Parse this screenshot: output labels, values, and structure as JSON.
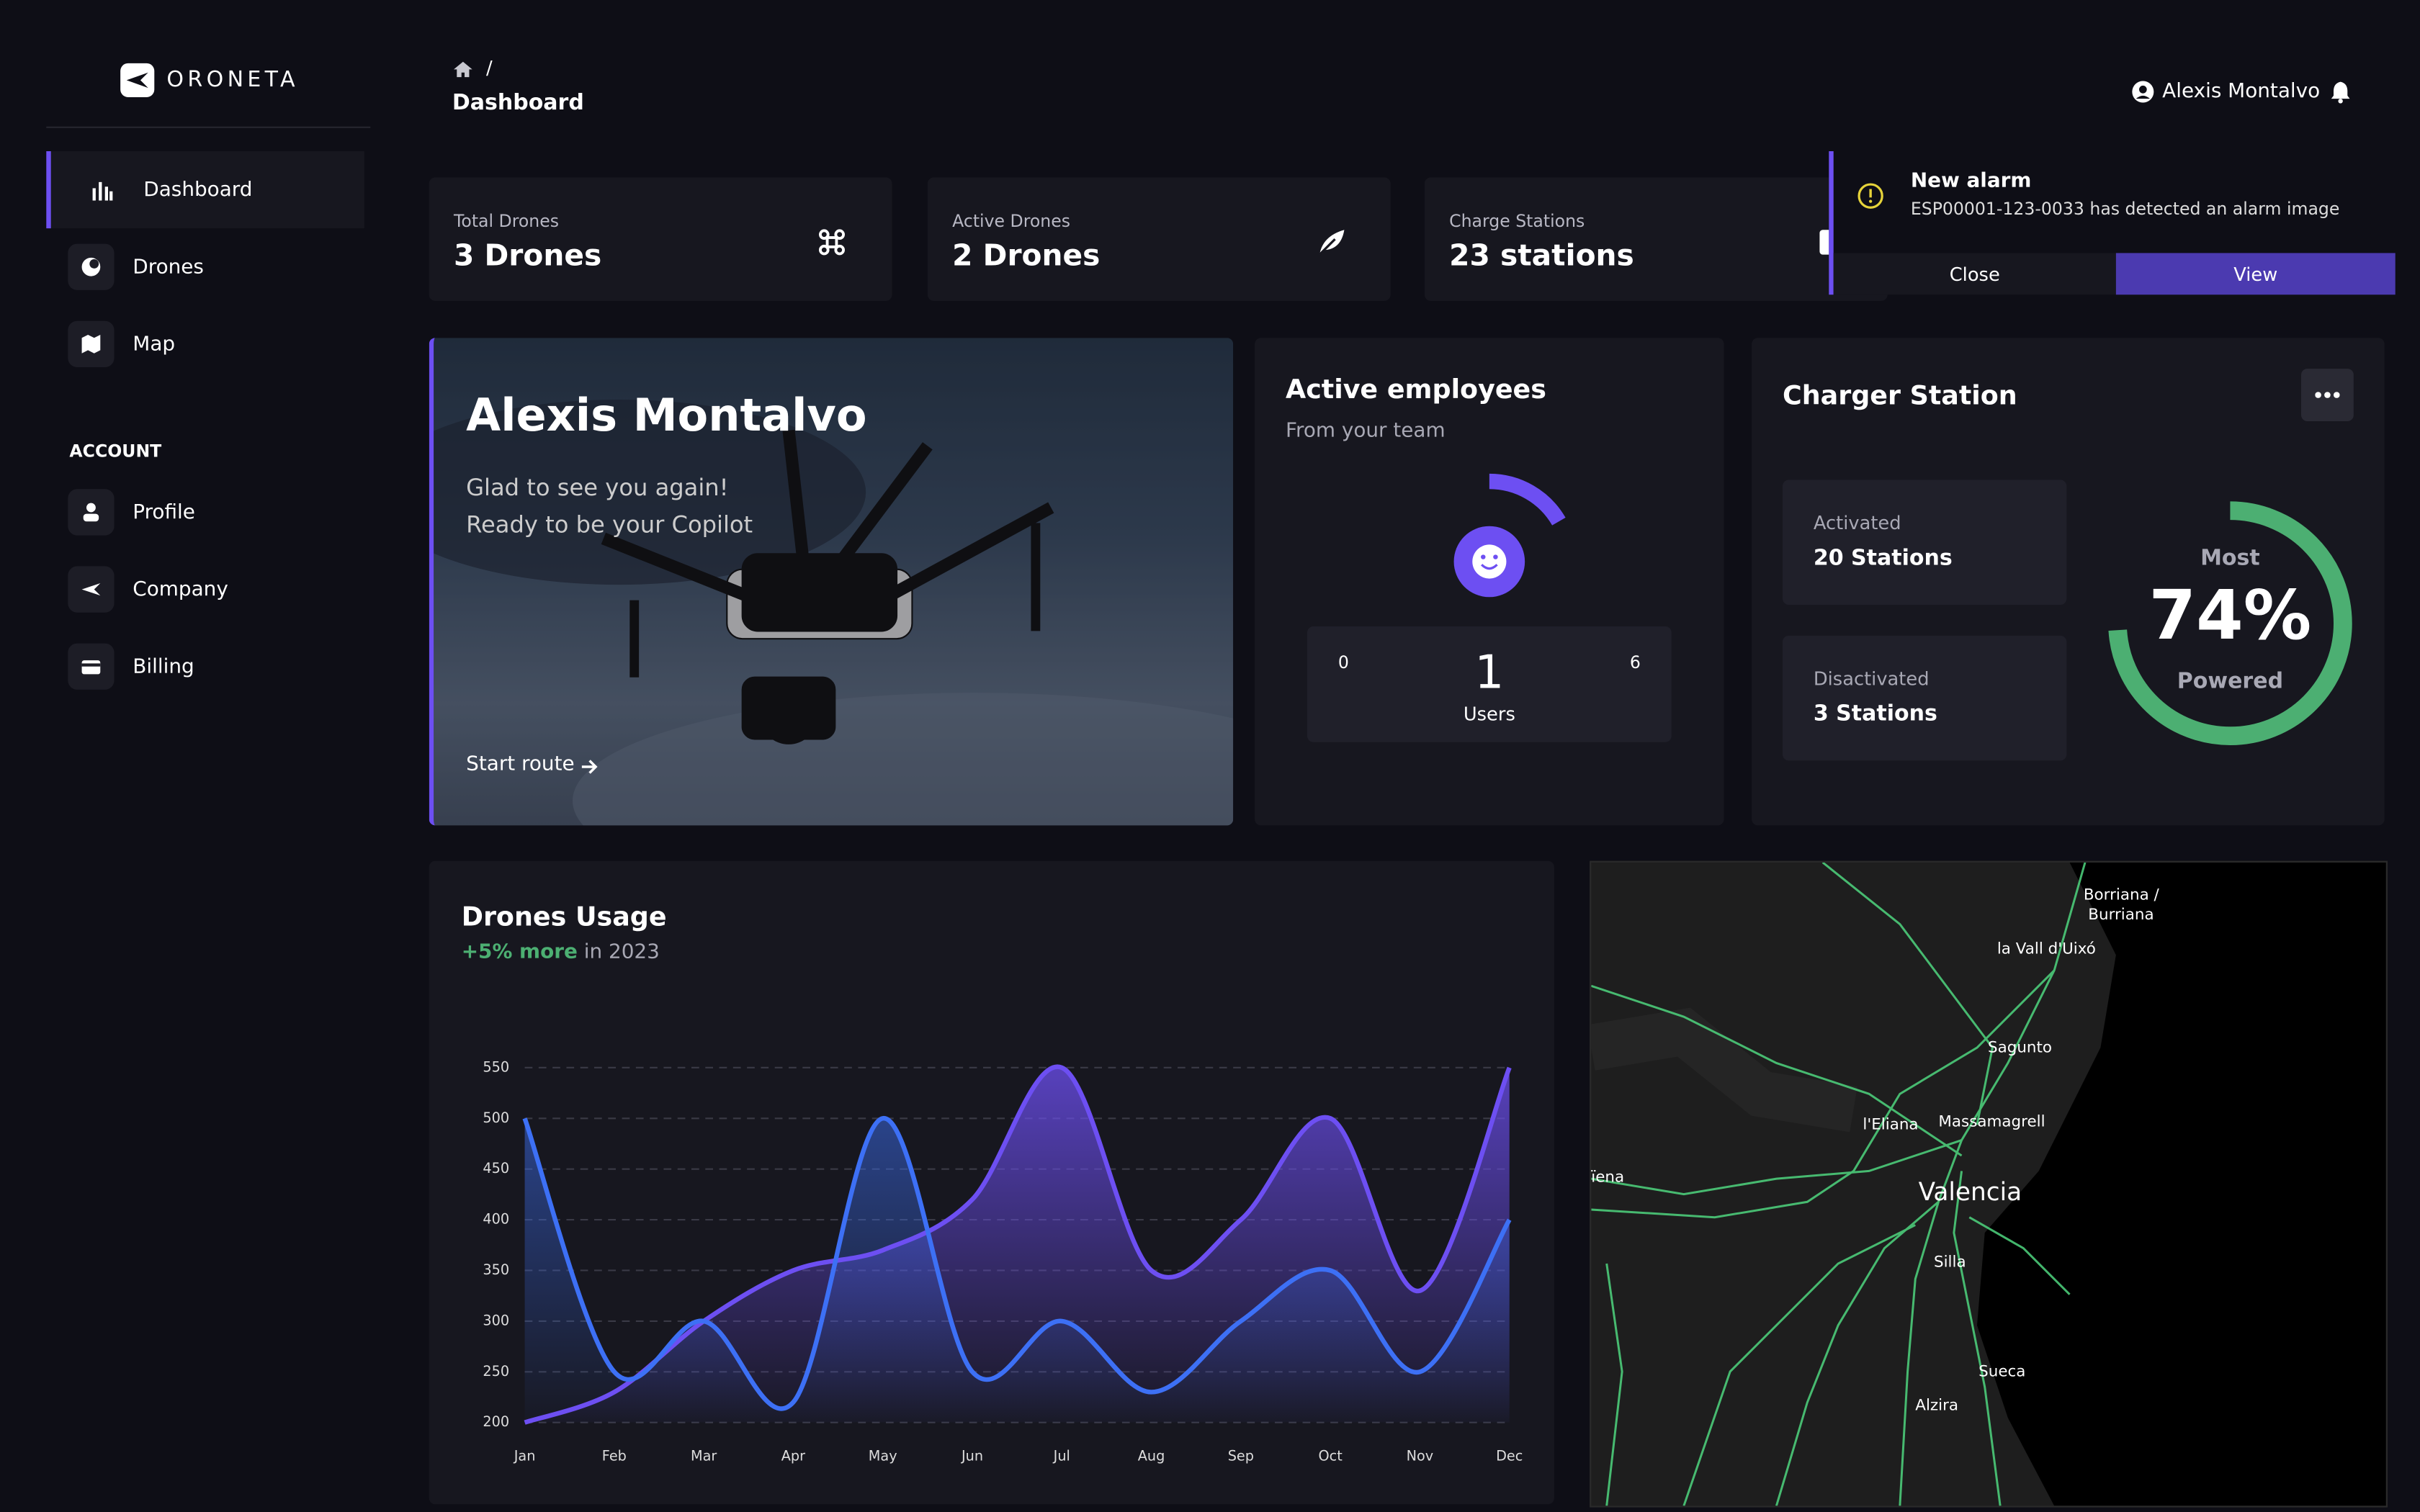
{
  "brand": "ORONETA",
  "sidebar": {
    "nav": [
      "Dashboard",
      "Drones",
      "Map"
    ],
    "account_heading": "ACCOUNT",
    "account": [
      "Profile",
      "Company",
      "Billing"
    ]
  },
  "header": {
    "breadcrumb": "/",
    "title": "Dashboard",
    "user": "Alexis Montalvo"
  },
  "stats": [
    {
      "label": "Total Drones",
      "value": "3 Drones"
    },
    {
      "label": "Active Drones",
      "value": "2 Drones"
    },
    {
      "label": "Charge Stations",
      "value": "23 stations"
    }
  ],
  "alert": {
    "title": "New alarm",
    "message": "ESP00001-123-0033 has detected an alarm image",
    "close": "Close",
    "view": "View"
  },
  "welcome": {
    "name": "Alexis Montalvo",
    "lines": [
      "Glad to see you again!",
      "Ready to be your Copilot"
    ],
    "action": "Start route"
  },
  "employees": {
    "title": "Active employees",
    "subtitle": "From your team",
    "min": 0,
    "max": 6,
    "value": 1,
    "unit": "Users"
  },
  "charger": {
    "title": "Charger Station",
    "activated": {
      "label": "Activated",
      "value": "20 Stations"
    },
    "deactivated": {
      "label": "Disactivated",
      "value": "3 Stations"
    },
    "gauge": {
      "top": "Most",
      "value": 74,
      "value_label": "74%",
      "bottom": "Powered"
    }
  },
  "chart_data": {
    "type": "line",
    "title": "Drones Usage",
    "subtitle_highlight": "+5% more",
    "subtitle_rest": "in 2023",
    "categories": [
      "Jan",
      "Feb",
      "Mar",
      "Apr",
      "May",
      "Jun",
      "Jul",
      "Aug",
      "Sep",
      "Oct",
      "Nov",
      "Dec"
    ],
    "series": [
      {
        "color": "#6d4ff2",
        "values": [
          200,
          230,
          300,
          350,
          370,
          420,
          550,
          350,
          400,
          500,
          330,
          550
        ]
      },
      {
        "color": "#3d70f5",
        "values": [
          500,
          250,
          300,
          220,
          500,
          250,
          300,
          230,
          300,
          350,
          250,
          400
        ]
      }
    ],
    "ylim": [
      200,
      550
    ],
    "yticks": [
      200,
      250,
      300,
      350,
      400,
      450,
      500,
      550
    ],
    "grid": true
  },
  "map": {
    "places": [
      "Borriana /",
      "Burriana",
      "la Vall d'Uixó",
      "Sagunto",
      "l'Eliana",
      "Massamagrell",
      "Valencia",
      "ïena",
      "Silla",
      "Sueca",
      "Alzira"
    ]
  }
}
